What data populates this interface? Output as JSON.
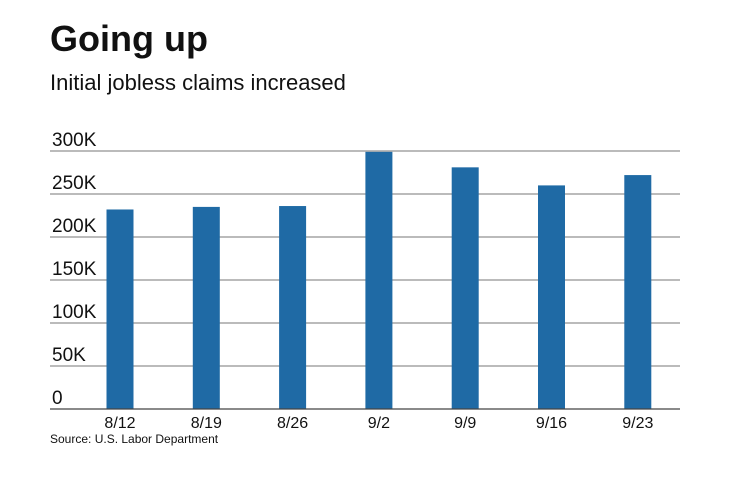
{
  "header": {
    "title": "Going up",
    "subtitle": "Initial jobless claims increased"
  },
  "footer": {
    "source": "Source: U.S. Labor Department"
  },
  "colors": {
    "bar": "#1f6aa5",
    "grid": "#777777",
    "axis": "#444444"
  },
  "chart_data": {
    "type": "bar",
    "categories": [
      "8/12",
      "8/19",
      "8/26",
      "9/2",
      "9/9",
      "9/16",
      "9/23"
    ],
    "values": [
      232000,
      235000,
      236000,
      299000,
      281000,
      260000,
      272000
    ],
    "yticks": [
      0,
      50000,
      100000,
      150000,
      200000,
      250000,
      300000
    ],
    "ytick_labels": [
      "0",
      "50K",
      "100K",
      "150K",
      "200K",
      "250K",
      "300K"
    ],
    "ylim": [
      0,
      300000
    ],
    "xlabel": "",
    "ylabel": "",
    "grid": true,
    "legend": "none"
  }
}
